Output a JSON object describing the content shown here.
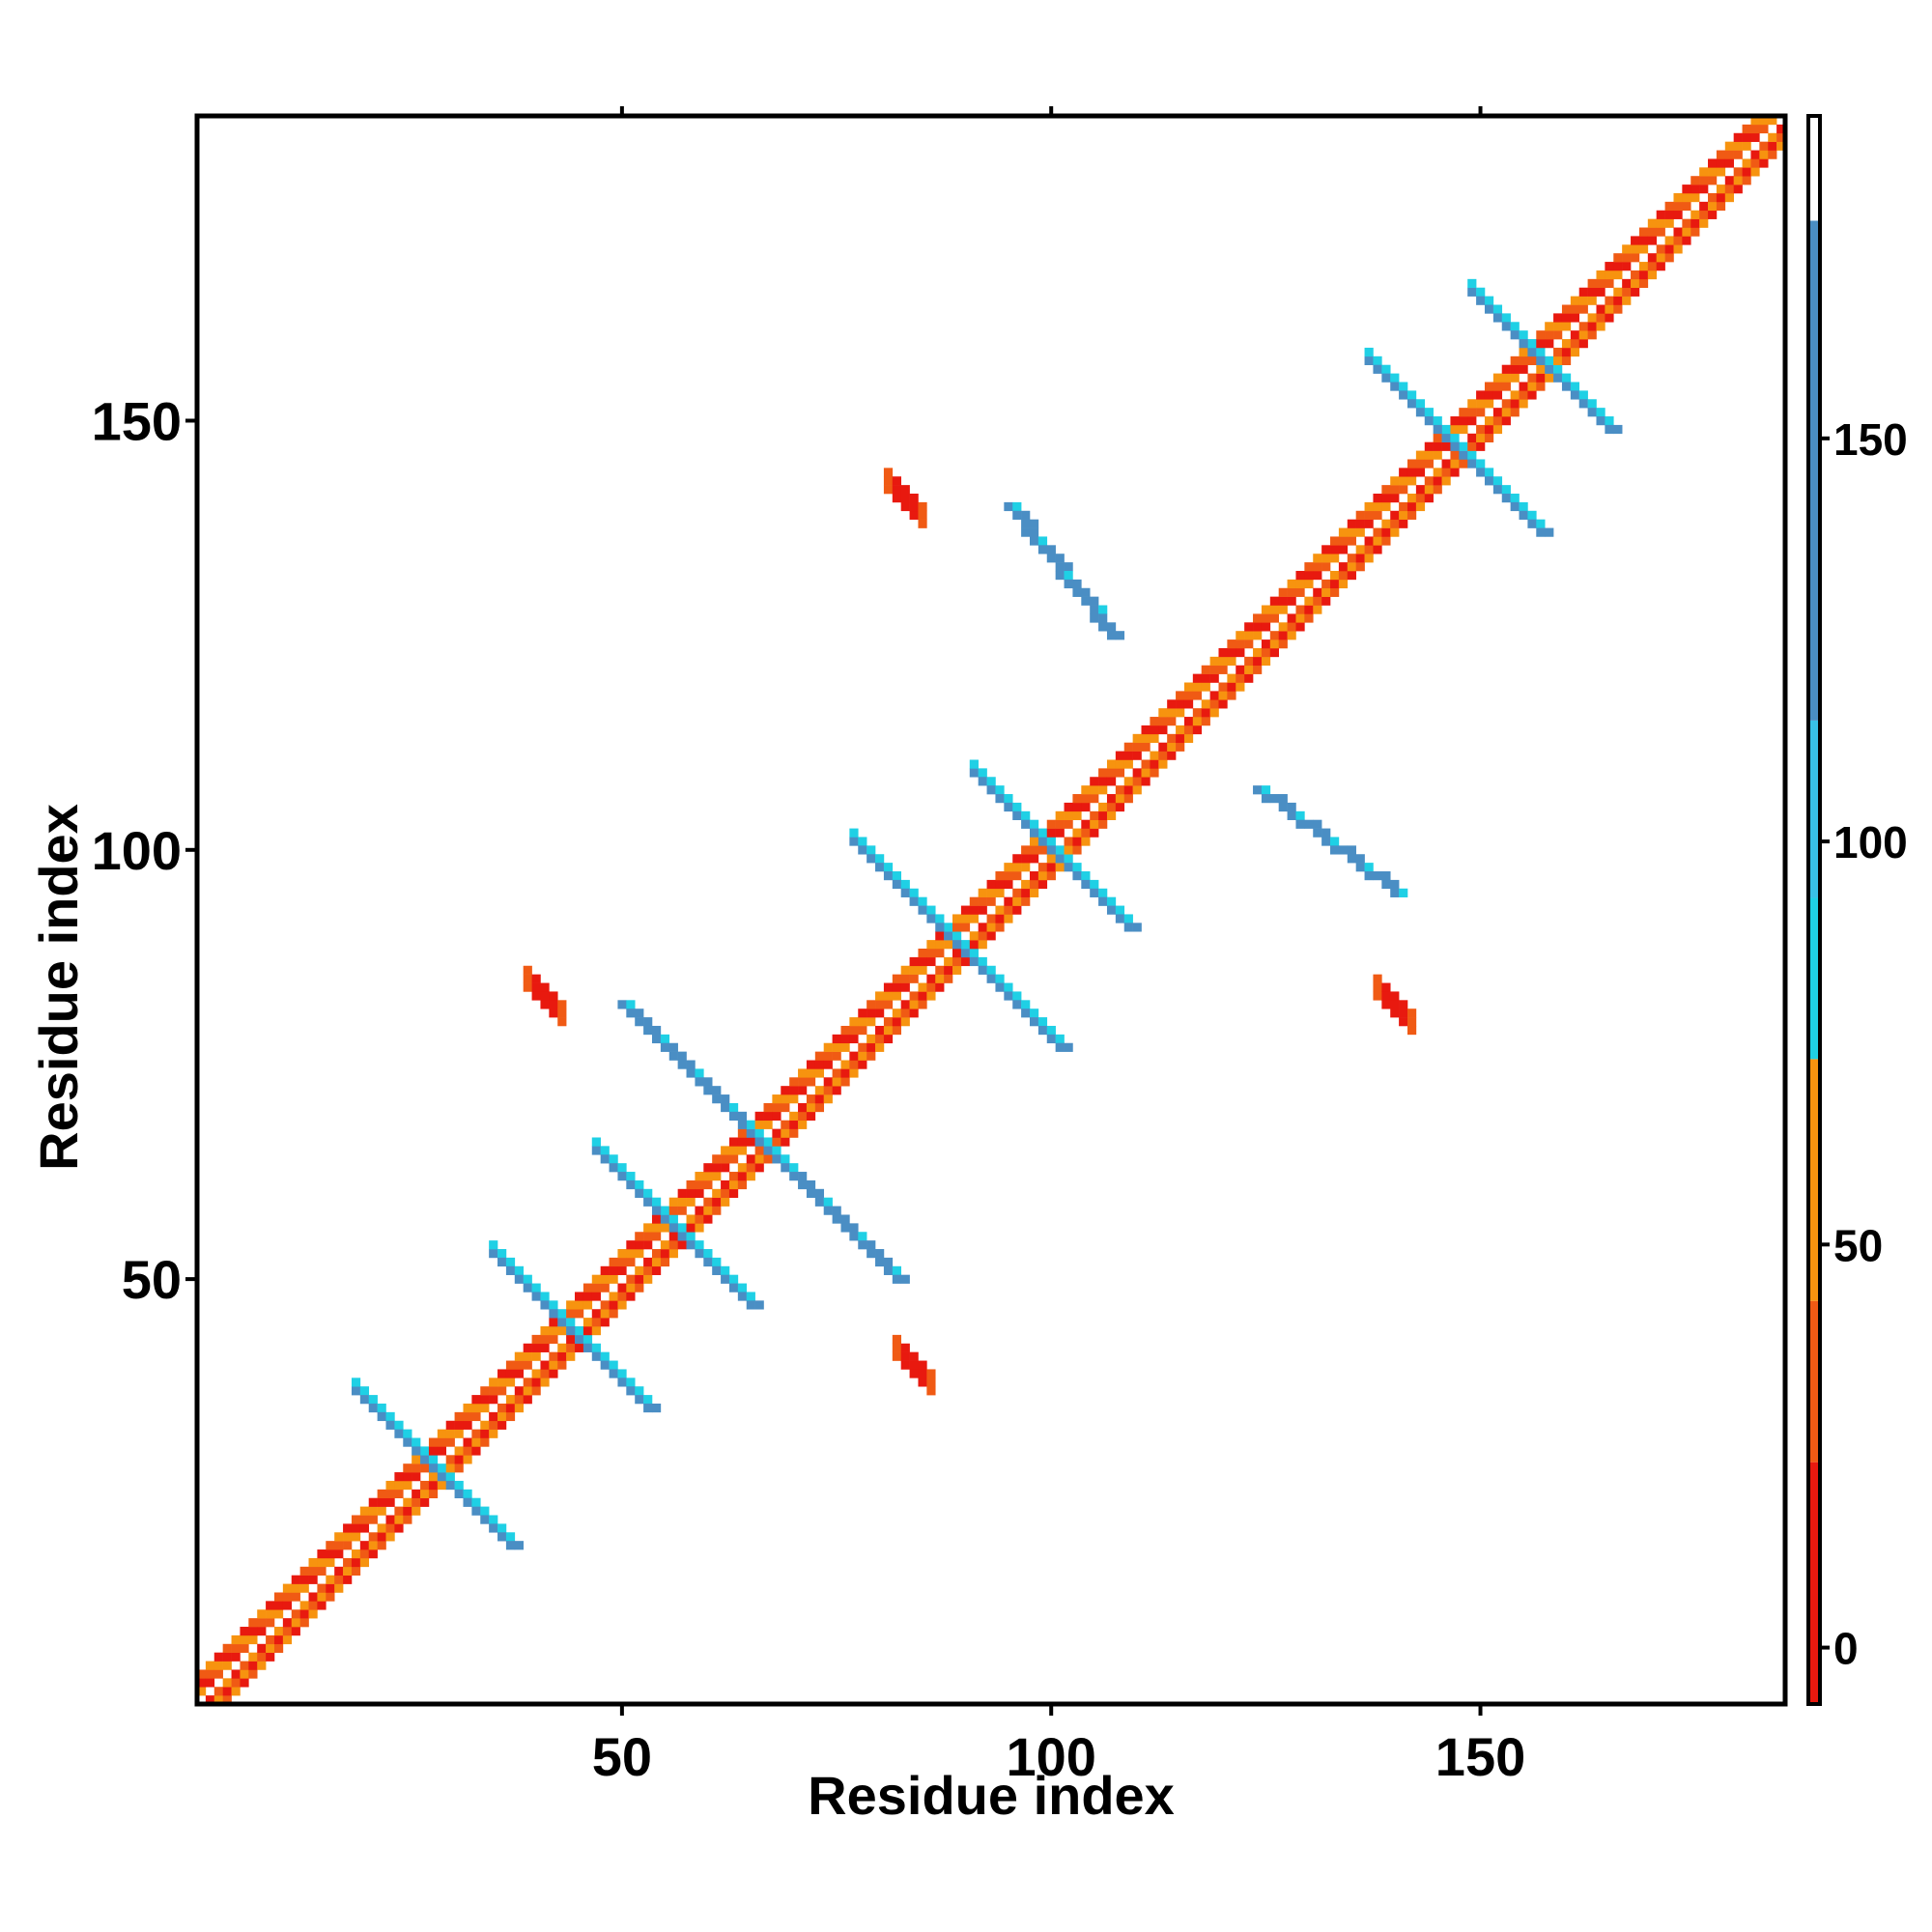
{
  "chart_data": {
    "type": "heatmap",
    "title": "",
    "xlabel": "Residue index",
    "ylabel": "Residue index",
    "xlim": [
      1,
      185
    ],
    "ylim": [
      1,
      185
    ],
    "x_ticks": [
      50,
      100,
      150
    ],
    "y_ticks": [
      50,
      100,
      150
    ],
    "x_tick_labels": [
      "50",
      "100",
      "150"
    ],
    "y_tick_labels": [
      "50",
      "100",
      "150"
    ],
    "colorbar": {
      "ticks": [
        0,
        50,
        100,
        150
      ],
      "tick_labels": [
        "0",
        "50",
        "100",
        "150"
      ],
      "range": [
        -7,
        190
      ],
      "bins": [
        {
          "from": -7,
          "to": 23,
          "color": "#e8190f"
        },
        {
          "from": 23,
          "to": 43,
          "color": "#f05a14"
        },
        {
          "from": 43,
          "to": 73,
          "color": "#f7930f"
        },
        {
          "from": 73,
          "to": 93,
          "color": "#1fd0e5"
        },
        {
          "from": 93,
          "to": 115,
          "color": "#38c0e6"
        },
        {
          "from": 115,
          "to": 177,
          "color": "#4a8ec4"
        },
        {
          "from": 177,
          "to": 190,
          "color": "#ffffff"
        }
      ]
    },
    "diagonal": {
      "from": 1,
      "to": 185,
      "band_colors": [
        "#e8190f",
        "#f05a14",
        "#f7930f"
      ],
      "helix_segments": [
        [
          1,
          10
        ],
        [
          13,
          20
        ]
      ]
    },
    "strand_pairs": [
      {
        "center": [
          28,
          28
        ],
        "half_length": 9,
        "colors": [
          "#4a8ec4",
          "#1fd0e5"
        ]
      },
      {
        "center": [
          44,
          44
        ],
        "half_length": 9,
        "colors": [
          "#4a8ec4",
          "#1fd0e5"
        ]
      },
      {
        "center": [
          56,
          56
        ],
        "half_length": 9,
        "colors": [
          "#4a8ec4",
          "#1fd0e5"
        ]
      },
      {
        "center": [
          66,
          66
        ],
        "half_length": 10,
        "colors": [
          "#4a8ec4",
          "#1fd0e5"
        ]
      },
      {
        "center": [
          89,
          89
        ],
        "half_length": 12,
        "colors": [
          "#4a8ec4",
          "#1fd0e5"
        ]
      },
      {
        "center": [
          100,
          100
        ],
        "half_length": 9,
        "colors": [
          "#4a8ec4",
          "#1fd0e5"
        ]
      },
      {
        "center": [
          147,
          147
        ],
        "half_length": 10,
        "colors": [
          "#4a8ec4",
          "#1fd0e5"
        ]
      },
      {
        "center": [
          157,
          157
        ],
        "half_length": 8,
        "colors": [
          "#4a8ec4",
          "#1fd0e5"
        ]
      }
    ],
    "off_diagonal_bands": [
      {
        "from": [
          50,
          82
        ],
        "to": [
          63,
          69
        ],
        "color": "#4a8ec4"
      },
      {
        "from": [
          69,
          63
        ],
        "to": [
          82,
          50
        ],
        "color": "#4a8ec4"
      },
      {
        "from": [
          95,
          140
        ],
        "to": [
          107,
          125
        ],
        "color": "#4a8ec4"
      },
      {
        "from": [
          124,
          107
        ],
        "to": [
          140,
          95
        ],
        "color": "#4a8ec4"
      }
    ],
    "red_patches": [
      {
        "x": 41,
        "y": 83,
        "color": "#e8190f"
      },
      {
        "x": 84,
        "y": 40,
        "color": "#e8190f"
      },
      {
        "x": 83,
        "y": 141,
        "color": "#e8190f"
      },
      {
        "x": 140,
        "y": 82,
        "color": "#e8190f"
      }
    ]
  }
}
